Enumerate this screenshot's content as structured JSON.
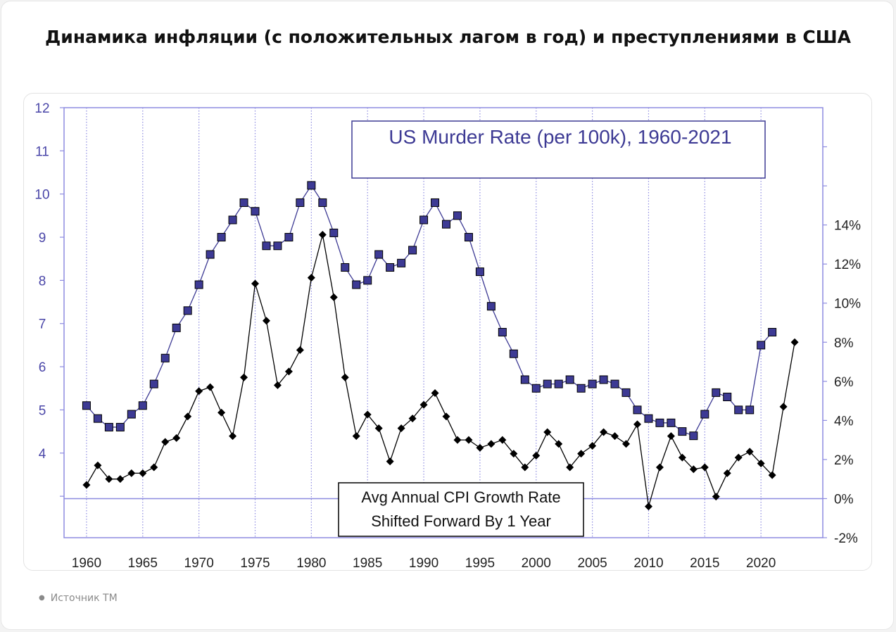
{
  "header": {
    "title": "Динамика инфляции (с положительных лагом в год) и преступлениями в США"
  },
  "footer": {
    "source": "Источник TM"
  },
  "colors": {
    "murder_series": "#3d3a94",
    "murder_marker_fill": "#3d3a94",
    "cpi_series": "#000000",
    "axis_text": "#4a46a8",
    "plot_border": "#8d8be0",
    "grid": "#8d8be0"
  },
  "chart_data": {
    "type": "line",
    "title": "US Murder Rate (per 100k), 1960-2021",
    "annotation_lines": [
      "Avg Annual CPI Growth Rate",
      "Shifted Forward By 1 Year"
    ],
    "x_ticks": [
      1960,
      1965,
      1970,
      1975,
      1980,
      1985,
      1990,
      1995,
      2000,
      2005,
      2010,
      2015,
      2020
    ],
    "xlim": [
      1958,
      2025.5
    ],
    "left_axis": {
      "ticks": [
        4,
        5,
        6,
        7,
        8,
        9,
        10,
        11,
        12
      ],
      "ylim": [
        2.04,
        12
      ]
    },
    "right_axis": {
      "ticks": [
        -2,
        0,
        2,
        4,
        6,
        8,
        10,
        12,
        14
      ],
      "tick_labels": [
        "-2%",
        "0%",
        "2%",
        "4%",
        "6%",
        "8%",
        "10%",
        "12%",
        "14%"
      ],
      "ylim": [
        -2,
        20
      ]
    },
    "grid": "vertical dotted at x ticks",
    "series": [
      {
        "name": "US Murder Rate (per 100k)",
        "axis": "left",
        "marker": "square",
        "x": [
          1960,
          1961,
          1962,
          1963,
          1964,
          1965,
          1966,
          1967,
          1968,
          1969,
          1970,
          1971,
          1972,
          1973,
          1974,
          1975,
          1976,
          1977,
          1978,
          1979,
          1980,
          1981,
          1982,
          1983,
          1984,
          1985,
          1986,
          1987,
          1988,
          1989,
          1990,
          1991,
          1992,
          1993,
          1994,
          1995,
          1996,
          1997,
          1998,
          1999,
          2000,
          2001,
          2002,
          2003,
          2004,
          2005,
          2006,
          2007,
          2008,
          2009,
          2010,
          2011,
          2012,
          2013,
          2014,
          2015,
          2016,
          2017,
          2018,
          2019,
          2020,
          2021
        ],
        "values": [
          5.1,
          4.8,
          4.6,
          4.6,
          4.9,
          5.1,
          5.6,
          6.2,
          6.9,
          7.3,
          7.9,
          8.6,
          9.0,
          9.4,
          9.8,
          9.6,
          8.8,
          8.8,
          9.0,
          9.8,
          10.2,
          9.8,
          9.1,
          8.3,
          7.9,
          8.0,
          8.6,
          8.3,
          8.4,
          8.7,
          9.4,
          9.8,
          9.3,
          9.5,
          9.0,
          8.2,
          7.4,
          6.8,
          6.3,
          5.7,
          5.5,
          5.6,
          5.6,
          5.7,
          5.5,
          5.6,
          5.7,
          5.6,
          5.4,
          5.0,
          4.8,
          4.7,
          4.7,
          4.5,
          4.4,
          4.9,
          5.4,
          5.3,
          5.0,
          5.0,
          6.5,
          6.8
        ]
      },
      {
        "name": "Avg Annual CPI Growth Rate, Shifted Forward By 1 Year",
        "axis": "right",
        "marker": "diamond",
        "x": [
          1960,
          1961,
          1962,
          1963,
          1964,
          1965,
          1966,
          1967,
          1968,
          1969,
          1970,
          1971,
          1972,
          1973,
          1974,
          1975,
          1976,
          1977,
          1978,
          1979,
          1980,
          1981,
          1982,
          1983,
          1984,
          1985,
          1986,
          1987,
          1988,
          1989,
          1990,
          1991,
          1992,
          1993,
          1994,
          1995,
          1996,
          1997,
          1998,
          1999,
          2000,
          2001,
          2002,
          2003,
          2004,
          2005,
          2006,
          2007,
          2008,
          2009,
          2010,
          2011,
          2012,
          2013,
          2014,
          2015,
          2016,
          2017,
          2018,
          2019,
          2020,
          2021,
          2022,
          2023
        ],
        "values": [
          0.7,
          1.7,
          1.0,
          1.0,
          1.3,
          1.3,
          1.6,
          2.9,
          3.1,
          4.2,
          5.5,
          5.7,
          4.4,
          3.2,
          6.2,
          11.0,
          9.1,
          5.8,
          6.5,
          7.6,
          11.3,
          13.5,
          10.3,
          6.2,
          3.2,
          4.3,
          3.6,
          1.9,
          3.6,
          4.1,
          4.8,
          5.4,
          4.2,
          3.0,
          3.0,
          2.6,
          2.8,
          3.0,
          2.3,
          1.6,
          2.2,
          3.4,
          2.8,
          1.6,
          2.3,
          2.7,
          3.4,
          3.2,
          2.8,
          3.8,
          -0.4,
          1.6,
          3.2,
          2.1,
          1.5,
          1.6,
          0.1,
          1.3,
          2.1,
          2.4,
          1.8,
          1.2,
          4.7,
          8.0
        ]
      }
    ]
  }
}
